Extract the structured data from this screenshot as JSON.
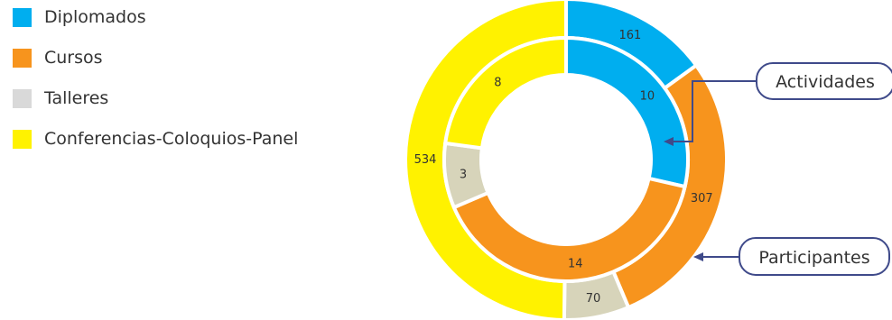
{
  "chart_data": {
    "type": "donut",
    "categories": [
      "Diplomados",
      "Cursos",
      "Talleres",
      "Conferencias-Coloquios-Panel"
    ],
    "colors": [
      "#00aeef",
      "#f7941d",
      "#d7d4ba",
      "#fff200"
    ],
    "legend_colors": [
      "#00aeef",
      "#f7941d",
      "#d9d9d9",
      "#fff200"
    ],
    "series": [
      {
        "name": "Actividades",
        "values": [
          10,
          14,
          3,
          8
        ]
      },
      {
        "name": "Participantes",
        "values": [
          161,
          307,
          70,
          534
        ]
      }
    ],
    "legend_position": "left"
  }
}
